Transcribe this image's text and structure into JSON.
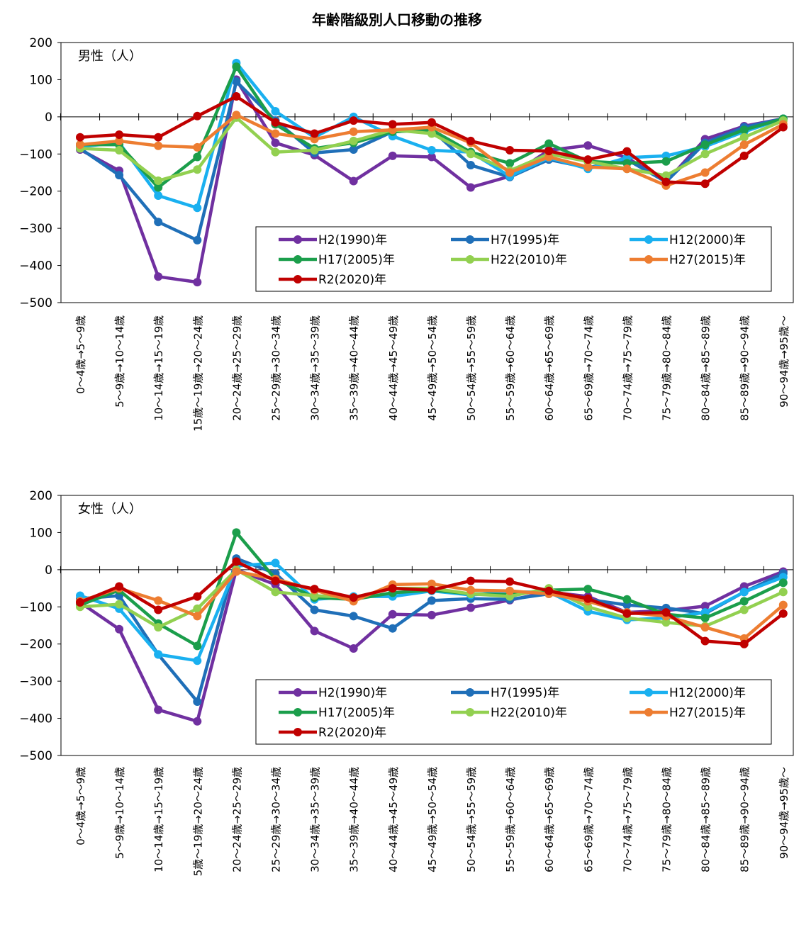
{
  "title": "年齢階級別人口移動の推移",
  "chart_data": [
    {
      "type": "line",
      "panel_label": "男性（人）",
      "ylim": [
        -500,
        200
      ],
      "yticks": [
        200,
        100,
        0,
        -100,
        -200,
        -300,
        -400,
        -500
      ],
      "categories": [
        "0～4歳→5～9歳",
        "5～9歳→10～14歳",
        "10～14歳→15～19歳",
        "15歳～19歳→20～24歳",
        "20～24歳→25～29歳",
        "25～29歳→30～34歳",
        "30～34歳→35～39歳",
        "35～39歳→40～44歳",
        "40～44歳→45～49歳",
        "45～49歳→50～54歳",
        "50～54歳→55～59歳",
        "55～59歳→60～64歳",
        "60～64歳→65～69歳",
        "65～69歳→70～74歳",
        "70～74歳→75～79歳",
        "75～79歳→80～84歳",
        "80～84歳→85～89歳",
        "85～89歳→90～94歳",
        "90～94歳→95歳～"
      ],
      "series": [
        {
          "name": "H2(1990)年",
          "color": "#7030a0",
          "values": [
            -88,
            -145,
            -430,
            -445,
            100,
            -70,
            -103,
            -173,
            -105,
            -108,
            -190,
            -160,
            -90,
            -77,
            -110,
            -175,
            -60,
            -25,
            -5
          ]
        },
        {
          "name": "H7(1995)年",
          "color": "#1f6fb8",
          "values": [
            -85,
            -157,
            -283,
            -332,
            95,
            -10,
            -97,
            -88,
            -40,
            -35,
            -130,
            -162,
            -115,
            -137,
            -115,
            -175,
            -70,
            -28,
            -5
          ]
        },
        {
          "name": "H12(2000)年",
          "color": "#1ab0f0",
          "values": [
            -80,
            -70,
            -212,
            -245,
            145,
            15,
            -55,
            0,
            -52,
            -90,
            -95,
            -160,
            -110,
            -140,
            -110,
            -105,
            -80,
            -40,
            -5
          ]
        },
        {
          "name": "H17(2005)年",
          "color": "#1b9e4b",
          "values": [
            -75,
            -75,
            -190,
            -108,
            135,
            -20,
            -85,
            -70,
            -40,
            -35,
            -95,
            -125,
            -72,
            -120,
            -125,
            -120,
            -75,
            -35,
            -5
          ]
        },
        {
          "name": "H22(2010)年",
          "color": "#92d050",
          "values": [
            -85,
            -90,
            -172,
            -142,
            -2,
            -95,
            -90,
            -65,
            -35,
            -45,
            -100,
            -145,
            -100,
            -120,
            -140,
            -158,
            -100,
            -55,
            -10
          ]
        },
        {
          "name": "H27(2015)年",
          "color": "#ed7d31",
          "values": [
            -75,
            -65,
            -78,
            -82,
            5,
            -45,
            -60,
            -40,
            -35,
            -28,
            -70,
            -150,
            -108,
            -135,
            -140,
            -185,
            -150,
            -75,
            -20
          ]
        },
        {
          "name": "R2(2020)年",
          "color": "#c00000",
          "values": [
            -55,
            -48,
            -55,
            2,
            55,
            -15,
            -45,
            -10,
            -20,
            -15,
            -65,
            -90,
            -92,
            -115,
            -93,
            -175,
            -180,
            -105,
            -28
          ]
        }
      ]
    },
    {
      "type": "line",
      "panel_label": "女性（人）",
      "ylim": [
        -500,
        200
      ],
      "yticks": [
        200,
        100,
        0,
        -100,
        -200,
        -300,
        -400,
        -500
      ],
      "categories": [
        "0～4歳→5～9歳",
        "5～9歳→10～14歳",
        "10～14歳→15～19歳",
        "5歳～19歳→20～24歳",
        "20～24歳→25～29歳",
        "25～29歳→30～34歳",
        "30～34歳→35～39歳",
        "35～39歳→40～44歳",
        "40～44歳→45～49歳",
        "45～49歳→50～54歳",
        "50～54歳→55～59歳",
        "55～59歳→60～64歳",
        "60～64歳→65～69歳",
        "65～69歳→70～74歳",
        "70～74歳→75～79歳",
        "75～79歳→80～84歳",
        "80～84歳→85～89歳",
        "85～89歳→90～94歳",
        "90～94歳→95歳～"
      ],
      "series": [
        {
          "name": "H2(1990)年",
          "color": "#7030a0",
          "values": [
            -88,
            -160,
            -377,
            -408,
            0,
            -40,
            -165,
            -212,
            -120,
            -122,
            -102,
            -82,
            -60,
            -72,
            -115,
            -110,
            -98,
            -45,
            -5
          ]
        },
        {
          "name": "H7(1995)年",
          "color": "#1f6fb8",
          "values": [
            -78,
            -70,
            -228,
            -355,
            30,
            -10,
            -108,
            -125,
            -158,
            -83,
            -78,
            -80,
            -65,
            -80,
            -95,
            -103,
            -118,
            -60,
            -10
          ]
        },
        {
          "name": "H12(2000)年",
          "color": "#1ab0f0",
          "values": [
            -70,
            -105,
            -228,
            -245,
            10,
            18,
            -80,
            -72,
            -72,
            -57,
            -68,
            -60,
            -60,
            -112,
            -135,
            -130,
            -115,
            -60,
            -20
          ]
        },
        {
          "name": "H17(2005)年",
          "color": "#1b9e4b",
          "values": [
            -95,
            -55,
            -145,
            -205,
            100,
            -25,
            -75,
            -80,
            -62,
            -55,
            -65,
            -68,
            -55,
            -52,
            -80,
            -120,
            -130,
            -85,
            -35
          ]
        },
        {
          "name": "H22(2010)年",
          "color": "#92d050",
          "values": [
            -100,
            -93,
            -155,
            -105,
            0,
            -60,
            -70,
            -75,
            -50,
            -50,
            -65,
            -72,
            -50,
            -100,
            -130,
            -142,
            -152,
            -108,
            -60
          ]
        },
        {
          "name": "H27(2015)年",
          "color": "#ed7d31",
          "values": [
            -85,
            -50,
            -83,
            -125,
            -5,
            -25,
            -55,
            -85,
            -40,
            -38,
            -55,
            -57,
            -65,
            -85,
            -115,
            -125,
            -155,
            -185,
            -95
          ]
        },
        {
          "name": "R2(2020)年",
          "color": "#c00000",
          "values": [
            -88,
            -45,
            -108,
            -72,
            22,
            -30,
            -52,
            -75,
            -50,
            -55,
            -30,
            -32,
            -57,
            -78,
            -118,
            -115,
            -192,
            -200,
            -118
          ]
        }
      ]
    }
  ]
}
